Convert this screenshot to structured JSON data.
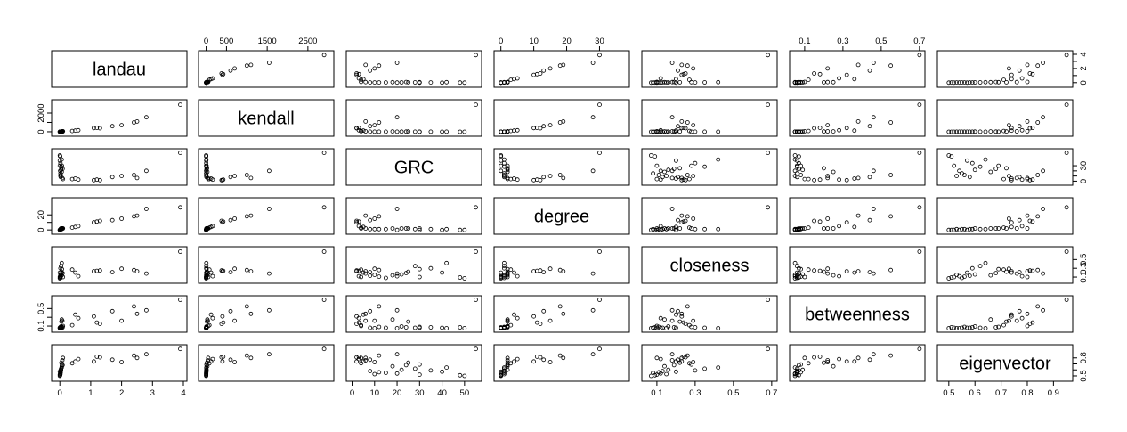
{
  "chart_data": {
    "type": "scatter",
    "variables": [
      "landau",
      "kendall",
      "GRC",
      "degree",
      "closeness",
      "betweenness",
      "eigenvector"
    ],
    "axes": [
      {
        "name": "landau",
        "range": [
          -0.15,
          4.0
        ],
        "ticks": [
          0,
          1,
          2,
          3,
          4
        ],
        "tick_labels": [
          "0",
          "1",
          "2",
          "3",
          "4"
        ],
        "side": "bottom"
      },
      {
        "name": "kendall",
        "range": [
          -100,
          3050
        ],
        "ticks": [
          0,
          500,
          1500,
          2500
        ],
        "tick_labels": [
          "0",
          "500",
          "1500",
          "2500"
        ],
        "side": "top"
      },
      {
        "name": "GRC",
        "range": [
          -1,
          56
        ],
        "ticks": [
          0,
          10,
          20,
          30,
          40,
          50
        ],
        "tick_labels": [
          "0",
          "10",
          "20",
          "30",
          "40",
          "50"
        ],
        "side": "bottom"
      },
      {
        "name": "degree",
        "range": [
          -1,
          38
        ],
        "ticks": [
          0,
          10,
          20,
          30
        ],
        "tick_labels": [
          "0",
          "10",
          "20",
          "30"
        ],
        "side": "top"
      },
      {
        "name": "closeness",
        "range": [
          0.04,
          0.71
        ],
        "ticks": [
          0.1,
          0.3,
          0.5,
          0.7
        ],
        "tick_labels": [
          "0.1",
          "0.3",
          "0.5",
          "0.7"
        ],
        "side": "bottom"
      },
      {
        "name": "betweenness",
        "range": [
          0.04,
          0.71
        ],
        "ticks": [
          0.1,
          0.3,
          0.5,
          0.7
        ],
        "tick_labels": [
          "0.1",
          "0.3",
          "0.5",
          "0.7"
        ],
        "side": "top"
      },
      {
        "name": "eigenvector",
        "range": [
          0.47,
          0.96
        ],
        "ticks": [
          0.5,
          0.6,
          0.7,
          0.8,
          0.9
        ],
        "tick_labels": [
          "0.5",
          "0.6",
          "0.7",
          "0.8",
          "0.9"
        ],
        "side": "bottom"
      }
    ],
    "left_axes": [
      {
        "row": 1,
        "ticks": [
          0,
          1000,
          2000
        ],
        "tick_labels": [
          "0",
          "",
          "2000"
        ]
      },
      {
        "row": 3,
        "ticks": [
          0,
          10,
          20
        ],
        "tick_labels": [
          "0",
          "",
          "20"
        ]
      },
      {
        "row": 5,
        "ticks": [
          0.1,
          0.3,
          0.5
        ],
        "tick_labels": [
          "0.1",
          "",
          "0.5"
        ]
      }
    ],
    "right_axes": [
      {
        "row": 0,
        "ticks": [
          0,
          1,
          2,
          3,
          4
        ],
        "tick_labels": [
          "0",
          "",
          "2",
          "",
          "4"
        ]
      },
      {
        "row": 2,
        "ticks": [
          0,
          10,
          20,
          30
        ],
        "tick_labels": [
          "0",
          "",
          "",
          "30"
        ]
      },
      {
        "row": 4,
        "ticks": [
          0.1,
          0.3,
          0.5
        ],
        "tick_labels": [
          "0.1",
          "0.3",
          "0.5"
        ]
      },
      {
        "row": 6,
        "ticks": [
          0.5,
          0.6,
          0.7,
          0.8
        ],
        "tick_labels": [
          "0.5",
          "",
          "",
          "0.8"
        ]
      }
    ],
    "points": [
      [
        0.0,
        0,
        50,
        0,
        0.07,
        0.05,
        0.5
      ],
      [
        0.0,
        0,
        30,
        0,
        0.1,
        0.06,
        0.52
      ],
      [
        0.01,
        0,
        48,
        0,
        0.09,
        0.07,
        0.51
      ],
      [
        0.01,
        1,
        20,
        0,
        0.12,
        0.05,
        0.54
      ],
      [
        0.02,
        1,
        15,
        1,
        0.08,
        0.06,
        0.55
      ],
      [
        0.02,
        2,
        10,
        1,
        0.15,
        0.05,
        0.53
      ],
      [
        0.03,
        5,
        12,
        1,
        0.11,
        0.08,
        0.56
      ],
      [
        0.03,
        8,
        8,
        1,
        0.13,
        0.06,
        0.58
      ],
      [
        0.04,
        10,
        22,
        2,
        0.16,
        0.09,
        0.6
      ],
      [
        0.05,
        20,
        25,
        2,
        0.22,
        0.2,
        0.72
      ],
      [
        0.06,
        30,
        18,
        2,
        0.14,
        0.25,
        0.66
      ],
      [
        0.08,
        40,
        6,
        2,
        0.18,
        0.22,
        0.76
      ],
      [
        0.1,
        50,
        4,
        2,
        0.1,
        0.1,
        0.8
      ],
      [
        0.4,
        80,
        4,
        3,
        0.27,
        0.12,
        0.71
      ],
      [
        0.5,
        120,
        5,
        4,
        0.2,
        0.36,
        0.74
      ],
      [
        0.6,
        160,
        3,
        5,
        0.12,
        0.28,
        0.78
      ],
      [
        1.1,
        400,
        2,
        10,
        0.23,
        0.32,
        0.74
      ],
      [
        1.2,
        420,
        3,
        11,
        0.24,
        0.18,
        0.82
      ],
      [
        1.3,
        380,
        2,
        12,
        0.25,
        0.15,
        0.81
      ],
      [
        1.7,
        600,
        8,
        13,
        0.21,
        0.44,
        0.77
      ],
      [
        2.0,
        700,
        10,
        15,
        0.29,
        0.22,
        0.73
      ],
      [
        2.4,
        1000,
        12,
        18,
        0.26,
        0.55,
        0.84
      ],
      [
        2.5,
        1100,
        6,
        19,
        0.23,
        0.38,
        0.8
      ],
      [
        2.8,
        1550,
        20,
        28,
        0.18,
        0.46,
        0.86
      ],
      [
        3.9,
        2900,
        55,
        30,
        0.68,
        0.7,
        0.95
      ],
      [
        0.0,
        2,
        40,
        0,
        0.2,
        0.06,
        0.57
      ],
      [
        0.02,
        3,
        35,
        1,
        0.3,
        0.07,
        0.59
      ],
      [
        0.04,
        4,
        28,
        1,
        0.35,
        0.06,
        0.62
      ],
      [
        0.06,
        6,
        42,
        1,
        0.42,
        0.05,
        0.64
      ],
      [
        0.07,
        9,
        30,
        2,
        0.28,
        0.08,
        0.69
      ],
      [
        0.09,
        12,
        24,
        2,
        0.19,
        0.07,
        0.68
      ]
    ]
  }
}
